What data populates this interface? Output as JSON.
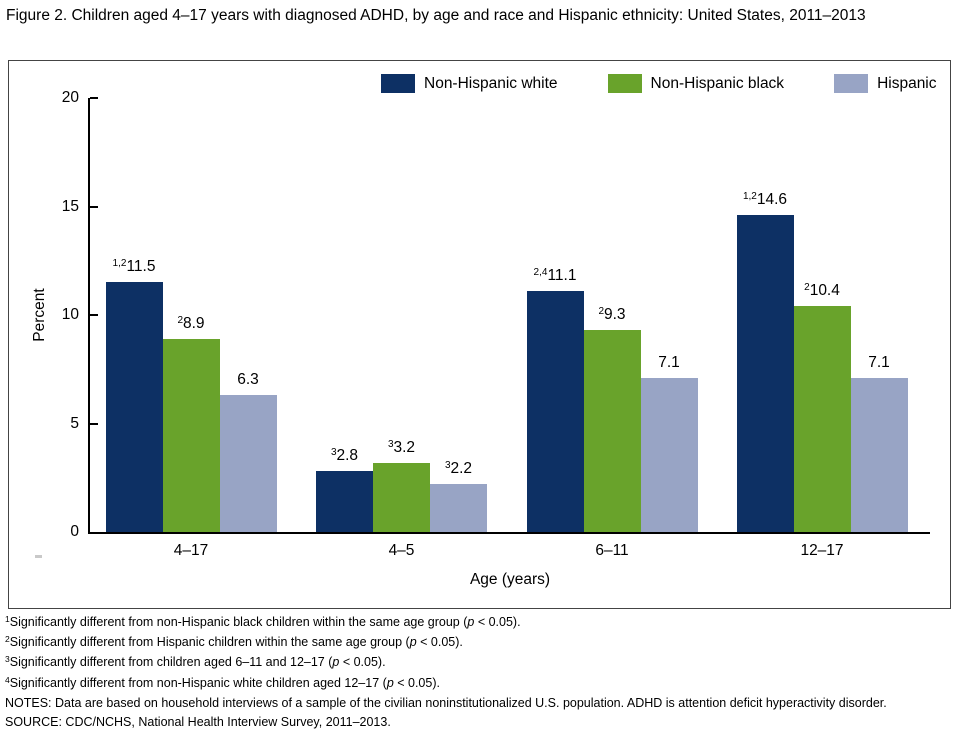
{
  "figure": {
    "title": "Figure 2. Children aged 4–17 years with diagnosed ADHD, by age and race and Hispanic ethnicity: United States, 2011–2013"
  },
  "chart_data": {
    "type": "bar",
    "title": "",
    "categories": [
      "4–17",
      "4–5",
      "6–11",
      "12–17"
    ],
    "series": [
      {
        "name": "Non-Hispanic white",
        "color": "#0d3064",
        "values": [
          11.5,
          2.8,
          11.1,
          14.6
        ],
        "value_superscripts": [
          "1,2",
          "3",
          "2,4",
          "1,2"
        ]
      },
      {
        "name": "Non-Hispanic black",
        "color": "#69a32b",
        "values": [
          8.9,
          3.2,
          9.3,
          10.4
        ],
        "value_superscripts": [
          "2",
          "3",
          "2",
          "2"
        ]
      },
      {
        "name": "Hispanic",
        "color": "#98a4c5",
        "values": [
          6.3,
          2.2,
          7.1,
          7.1
        ],
        "value_superscripts": [
          "",
          "3",
          "",
          ""
        ]
      }
    ],
    "xlabel": "Age (years)",
    "ylabel": "Percent",
    "ylim": [
      0,
      20
    ],
    "yticks": [
      0,
      5,
      10,
      15,
      20
    ],
    "grid": false,
    "legend_position": "top inside panel"
  },
  "footnotes": [
    {
      "sup": "1",
      "text": "Significantly different from non-Hispanic black children within the same age group (",
      "p": "p",
      "tail": " < 0.05)."
    },
    {
      "sup": "2",
      "text": "Significantly different from Hispanic children within the same age group (",
      "p": "p",
      "tail": " < 0.05)."
    },
    {
      "sup": "3",
      "text": "Significantly different from children aged 6–11 and 12–17 (",
      "p": "p",
      "tail": " < 0.05)."
    },
    {
      "sup": "4",
      "text": "Significantly different from non-Hispanic white children aged 12–17 (",
      "p": "p",
      "tail": " < 0.05)."
    }
  ],
  "notes": "NOTES: Data are based on household interviews of a sample of the civilian noninstitutionalized U.S. population. ADHD is attention deficit hyperactivity disorder.",
  "source": "SOURCE: CDC/NCHS, National Health Interview Survey, 2011–2013."
}
